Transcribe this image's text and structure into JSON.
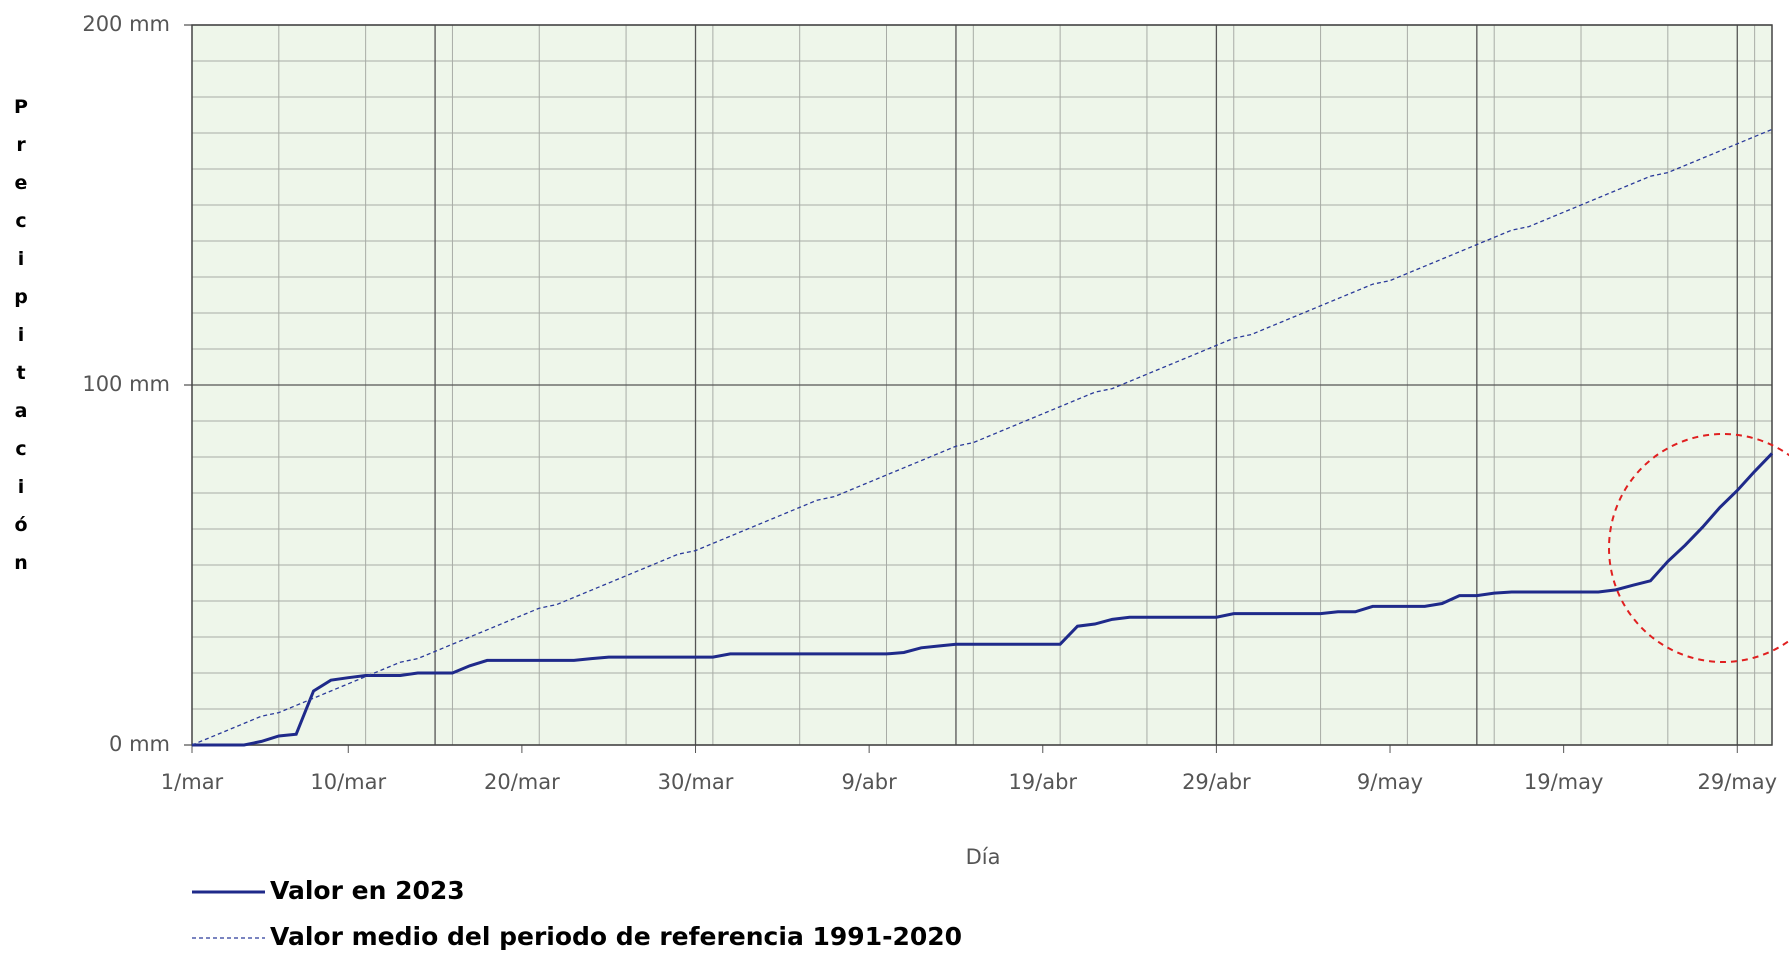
{
  "chart_data": {
    "type": "line",
    "xlabel": "Día",
    "ylabel": "Precipitación",
    "x": [
      0,
      1,
      2,
      3,
      4,
      5,
      6,
      7,
      8,
      9,
      10,
      11,
      12,
      13,
      14,
      15,
      16,
      17,
      18,
      19,
      20,
      21,
      22,
      23,
      24,
      25,
      26,
      27,
      28,
      29,
      30,
      31,
      32,
      33,
      34,
      35,
      36,
      37,
      38,
      39,
      40,
      41,
      42,
      43,
      44,
      45,
      46,
      47,
      48,
      49,
      50,
      51,
      52,
      53,
      54,
      55,
      56,
      57,
      58,
      59,
      60,
      61,
      62,
      63,
      64,
      65,
      66,
      67,
      68,
      69,
      70,
      71,
      72,
      73,
      74,
      75,
      76,
      77,
      78,
      79,
      80,
      81,
      82,
      83,
      84,
      85,
      86,
      87,
      88,
      89,
      90,
      91
    ],
    "series": [
      {
        "name": "Valor en 2023",
        "color": "#1f2a8a",
        "style": "solid",
        "values": [
          0,
          0,
          0,
          0,
          1,
          2.5,
          3,
          15,
          18,
          18.7,
          19.3,
          19.3,
          19.3,
          20,
          20,
          20,
          22,
          23.5,
          23.5,
          23.5,
          23.5,
          23.5,
          23.5,
          24,
          24.4,
          24.4,
          24.4,
          24.4,
          24.4,
          24.4,
          24.4,
          25.3,
          25.3,
          25.3,
          25.3,
          25.3,
          25.3,
          25.3,
          25.3,
          25.3,
          25.3,
          25.7,
          27,
          27.5,
          28,
          28,
          28,
          28,
          28,
          28,
          28,
          33,
          33.6,
          34.9,
          35.5,
          35.5,
          35.5,
          35.5,
          35.5,
          35.5,
          36.5,
          36.5,
          36.5,
          36.5,
          36.5,
          36.5,
          37,
          37,
          38.5,
          38.5,
          38.5,
          38.5,
          39.3,
          41.5,
          41.5,
          42.2,
          42.5,
          42.5,
          42.5,
          42.5,
          42.5,
          42.5,
          43.1,
          44.4,
          45.6,
          51,
          55.5,
          60.5,
          66,
          70.7,
          76,
          81
        ]
      },
      {
        "name": "Valor medio del periodo de referencia 1991-2020",
        "color": "#2a3a9a",
        "style": "dashed",
        "values": [
          0,
          2,
          4,
          6,
          8,
          9,
          11,
          13,
          15,
          17,
          19,
          21,
          23,
          24,
          26,
          28,
          30,
          32,
          34,
          36,
          38,
          39,
          41,
          43,
          45,
          47,
          49,
          51,
          53,
          54,
          56,
          58,
          60,
          62,
          64,
          66,
          68,
          69,
          71,
          73,
          75,
          77,
          79,
          81,
          83,
          84,
          86,
          88,
          90,
          92,
          94,
          96,
          98,
          99,
          101,
          103,
          105,
          107,
          109,
          111,
          113,
          114,
          116,
          118,
          120,
          122,
          124,
          126,
          128,
          129,
          131,
          133,
          135,
          137,
          139,
          141,
          143,
          144,
          146,
          148,
          150,
          152,
          154,
          156,
          158,
          159,
          161,
          163,
          165,
          167,
          169,
          171
        ]
      }
    ],
    "xlim": [
      0,
      91
    ],
    "xticks": [
      {
        "value": 0,
        "label": "1/mar"
      },
      {
        "value": 9,
        "label": "10/mar"
      },
      {
        "value": 19,
        "label": "20/mar"
      },
      {
        "value": 29,
        "label": "30/mar"
      },
      {
        "value": 39,
        "label": "9/abr"
      },
      {
        "value": 49,
        "label": "19/abr"
      },
      {
        "value": 59,
        "label": "29/abr"
      },
      {
        "value": 69,
        "label": "9/may"
      },
      {
        "value": 79,
        "label": "19/may"
      },
      {
        "value": 89,
        "label": "29/may"
      }
    ],
    "x_major_grid": [
      14,
      29,
      44,
      59,
      74,
      89
    ],
    "x_minor_grid": [
      5,
      10,
      15,
      20,
      25,
      30,
      35,
      40,
      45,
      50,
      55,
      60,
      65,
      70,
      75,
      80,
      85,
      90
    ],
    "ylim": [
      0,
      200
    ],
    "yticks": [
      {
        "value": 0,
        "label": "0 mm"
      },
      {
        "value": 100,
        "label": "100 mm"
      },
      {
        "value": 200,
        "label": "200 mm"
      }
    ],
    "y_minor_grid": [
      10,
      20,
      30,
      40,
      50,
      60,
      70,
      80,
      90,
      110,
      120,
      130,
      140,
      150,
      160,
      170,
      180,
      190
    ],
    "grid": true,
    "legend": "bottom-left"
  }
}
